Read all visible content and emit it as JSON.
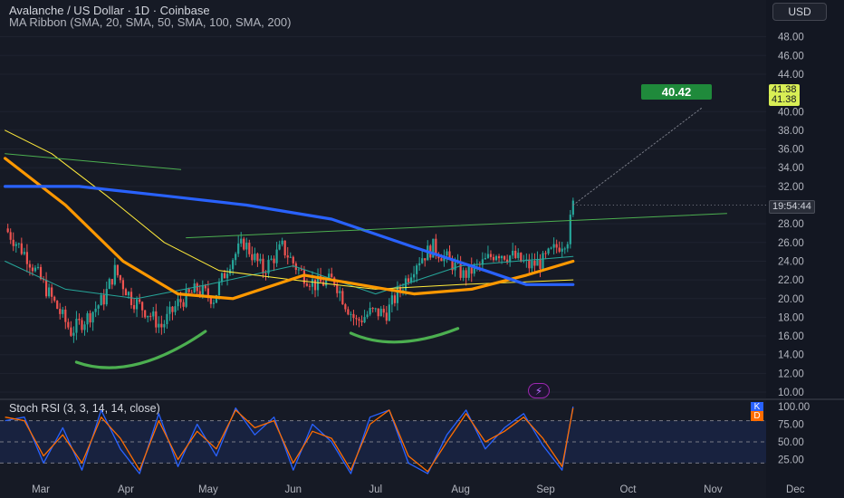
{
  "header": {
    "title": "Avalanche / US Dollar · 1D · Coinbase",
    "ribbon_label": "MA Ribbon (SMA, 20, SMA, 50, SMA, 100, SMA, 200)",
    "currency_button": "USD"
  },
  "price_tags": {
    "target": "40.42",
    "ma_a": "41.38",
    "ma_b": "41.38",
    "countdown": "19:54:44"
  },
  "stoch": {
    "title": "Stoch RSI (3, 3, 14, 14, close)",
    "k_label": "K",
    "d_label": "D",
    "k_color": "#2962ff",
    "d_color": "#ff6d00"
  },
  "colors": {
    "background": "#161a25",
    "up_candle": "#26a69a",
    "down_candle": "#ef5350",
    "sma20": "#26a69a",
    "sma50": "#ffeb3b",
    "sma100": "#ff9800",
    "sma200": "#2962ff",
    "trendline": "#4caf50"
  },
  "chart_data": [
    {
      "type": "candlestick",
      "title": "Avalanche / US Dollar · 1D · Coinbase",
      "x_ticks": [
        "Mar",
        "Apr",
        "May",
        "Jun",
        "Jul",
        "Aug",
        "Sep",
        "Oct",
        "Nov",
        "Dec"
      ],
      "y_ticks": [
        10,
        12,
        14,
        16,
        18,
        20,
        22,
        24,
        26,
        28,
        32,
        34,
        36,
        38,
        40,
        44,
        46,
        48
      ],
      "ylim": [
        9.5,
        50
      ],
      "price_scale": "right",
      "close_path": [
        {
          "date": "2024-02-17",
          "price": 27.5
        },
        {
          "date": "2024-02-25",
          "price": 24.5
        },
        {
          "date": "2024-03-01",
          "price": 22.0
        },
        {
          "date": "2024-03-07",
          "price": 19.0
        },
        {
          "date": "2024-03-12",
          "price": 16.5
        },
        {
          "date": "2024-03-18",
          "price": 18.0
        },
        {
          "date": "2024-03-24",
          "price": 20.0
        },
        {
          "date": "2024-03-28",
          "price": 23.0
        },
        {
          "date": "2024-04-03",
          "price": 20.0
        },
        {
          "date": "2024-04-09",
          "price": 18.5
        },
        {
          "date": "2024-04-14",
          "price": 17.0
        },
        {
          "date": "2024-04-20",
          "price": 19.5
        },
        {
          "date": "2024-04-27",
          "price": 21.0
        },
        {
          "date": "2024-05-03",
          "price": 20.0
        },
        {
          "date": "2024-05-09",
          "price": 24.0
        },
        {
          "date": "2024-05-14",
          "price": 26.0
        },
        {
          "date": "2024-05-21",
          "price": 23.0
        },
        {
          "date": "2024-05-28",
          "price": 25.5
        },
        {
          "date": "2024-06-03",
          "price": 23.0
        },
        {
          "date": "2024-06-09",
          "price": 21.5
        },
        {
          "date": "2024-06-16",
          "price": 22.0
        },
        {
          "date": "2024-06-20",
          "price": 19.5
        },
        {
          "date": "2024-06-24",
          "price": 17.5
        },
        {
          "date": "2024-06-29",
          "price": 18.5
        },
        {
          "date": "2024-07-05",
          "price": 18.5
        },
        {
          "date": "2024-07-10",
          "price": 21.0
        },
        {
          "date": "2024-07-16",
          "price": 24.0
        },
        {
          "date": "2024-07-22",
          "price": 25.5
        },
        {
          "date": "2024-07-28",
          "price": 24.0
        },
        {
          "date": "2024-08-02",
          "price": 22.5
        },
        {
          "date": "2024-08-08",
          "price": 23.5
        },
        {
          "date": "2024-08-14",
          "price": 25.0
        },
        {
          "date": "2024-08-20",
          "price": 24.5
        },
        {
          "date": "2024-08-26",
          "price": 23.5
        },
        {
          "date": "2024-08-31",
          "price": 24.0
        },
        {
          "date": "2024-09-05",
          "price": 25.5
        },
        {
          "date": "2024-09-09",
          "price": 26.5
        },
        {
          "date": "2024-09-11",
          "price": 30.0
        }
      ],
      "moving_averages": [
        {
          "name": "SMA 20",
          "points": [
            {
              "date": "2024-02-17",
              "price": 24.0
            },
            {
              "date": "2024-03-10",
              "price": 21.0
            },
            {
              "date": "2024-04-05",
              "price": 20.0
            },
            {
              "date": "2024-05-01",
              "price": 21.5
            },
            {
              "date": "2024-06-01",
              "price": 23.5
            },
            {
              "date": "2024-07-01",
              "price": 20.5
            },
            {
              "date": "2024-08-01",
              "price": 23.5
            },
            {
              "date": "2024-09-11",
              "price": 24.5
            }
          ]
        },
        {
          "name": "SMA 50",
          "points": [
            {
              "date": "2024-02-17",
              "price": 38.0
            },
            {
              "date": "2024-03-05",
              "price": 35.5
            },
            {
              "date": "2024-03-25",
              "price": 31.0
            },
            {
              "date": "2024-04-15",
              "price": 26.0
            },
            {
              "date": "2024-05-05",
              "price": 23.0
            },
            {
              "date": "2024-06-01",
              "price": 22.0
            },
            {
              "date": "2024-07-01",
              "price": 21.0
            },
            {
              "date": "2024-08-01",
              "price": 21.5
            },
            {
              "date": "2024-09-11",
              "price": 22.0
            }
          ]
        },
        {
          "name": "SMA 100",
          "points": [
            {
              "date": "2024-02-17",
              "price": 35.0
            },
            {
              "date": "2024-03-10",
              "price": 30.0
            },
            {
              "date": "2024-03-31",
              "price": 24.0
            },
            {
              "date": "2024-04-20",
              "price": 20.5
            },
            {
              "date": "2024-05-10",
              "price": 20.0
            },
            {
              "date": "2024-06-05",
              "price": 22.5
            },
            {
              "date": "2024-06-25",
              "price": 21.5
            },
            {
              "date": "2024-07-15",
              "price": 20.5
            },
            {
              "date": "2024-08-05",
              "price": 21.0
            },
            {
              "date": "2024-08-25",
              "price": 22.5
            },
            {
              "date": "2024-09-11",
              "price": 24.0
            }
          ]
        },
        {
          "name": "SMA 200",
          "points": [
            {
              "date": "2024-02-17",
              "price": 32.0
            },
            {
              "date": "2024-03-15",
              "price": 32.0
            },
            {
              "date": "2024-04-15",
              "price": 31.0
            },
            {
              "date": "2024-05-15",
              "price": 30.0
            },
            {
              "date": "2024-06-15",
              "price": 28.5
            },
            {
              "date": "2024-07-15",
              "price": 25.5
            },
            {
              "date": "2024-08-10",
              "price": 23.0
            },
            {
              "date": "2024-08-25",
              "price": 21.5
            },
            {
              "date": "2024-09-11",
              "price": 21.5
            }
          ]
        }
      ],
      "drawings": [
        {
          "kind": "trendline",
          "from": {
            "date": "2024-02-17",
            "price": 35.5
          },
          "to": {
            "date": "2024-04-21",
            "price": 33.8
          }
        },
        {
          "kind": "trendline",
          "from": {
            "date": "2024-04-23",
            "price": 26.5
          },
          "to": {
            "date": "2024-11-06",
            "price": 29.1
          }
        },
        {
          "kind": "projection",
          "from": {
            "date": "2024-09-11",
            "price": 30.0
          },
          "to": {
            "date": "2024-10-28",
            "price": 40.42
          }
        },
        {
          "kind": "arc",
          "from": {
            "date": "2024-03-14",
            "price": 13.2
          },
          "to": {
            "date": "2024-04-30",
            "price": 16.5
          }
        },
        {
          "kind": "arc",
          "from": {
            "date": "2024-06-22",
            "price": 16.3
          },
          "to": {
            "date": "2024-07-31",
            "price": 16.8
          }
        }
      ]
    },
    {
      "type": "line",
      "title": "Stoch RSI (3, 3, 14, 14, close)",
      "y_ticks": [
        25,
        50,
        75,
        100
      ],
      "ylim": [
        0,
        100
      ],
      "series": [
        {
          "name": "K",
          "x": [
            "2024-02-17",
            "2024-02-24",
            "2024-03-02",
            "2024-03-09",
            "2024-03-16",
            "2024-03-23",
            "2024-03-30",
            "2024-04-06",
            "2024-04-13",
            "2024-04-20",
            "2024-04-27",
            "2024-05-04",
            "2024-05-11",
            "2024-05-18",
            "2024-05-25",
            "2024-06-01",
            "2024-06-08",
            "2024-06-15",
            "2024-06-22",
            "2024-06-29",
            "2024-07-06",
            "2024-07-13",
            "2024-07-20",
            "2024-07-27",
            "2024-08-03",
            "2024-08-10",
            "2024-08-17",
            "2024-08-24",
            "2024-08-31",
            "2024-09-07",
            "2024-09-11"
          ],
          "values": [
            80,
            85,
            20,
            70,
            10,
            95,
            40,
            5,
            90,
            15,
            75,
            30,
            98,
            60,
            85,
            10,
            75,
            50,
            5,
            85,
            95,
            20,
            5,
            60,
            95,
            40,
            70,
            90,
            45,
            10,
            100
          ]
        },
        {
          "name": "D",
          "x": [
            "2024-02-17",
            "2024-02-24",
            "2024-03-02",
            "2024-03-09",
            "2024-03-16",
            "2024-03-23",
            "2024-03-30",
            "2024-04-06",
            "2024-04-13",
            "2024-04-20",
            "2024-04-27",
            "2024-05-04",
            "2024-05-11",
            "2024-05-18",
            "2024-05-25",
            "2024-06-01",
            "2024-06-08",
            "2024-06-15",
            "2024-06-22",
            "2024-06-29",
            "2024-07-06",
            "2024-07-13",
            "2024-07-20",
            "2024-07-27",
            "2024-08-03",
            "2024-08-10",
            "2024-08-17",
            "2024-08-24",
            "2024-08-31",
            "2024-09-07",
            "2024-09-11"
          ],
          "values": [
            85,
            80,
            30,
            60,
            20,
            85,
            55,
            10,
            80,
            25,
            65,
            40,
            95,
            70,
            80,
            20,
            65,
            55,
            10,
            75,
            95,
            30,
            8,
            50,
            90,
            50,
            65,
            85,
            55,
            15,
            98
          ]
        }
      ]
    }
  ]
}
